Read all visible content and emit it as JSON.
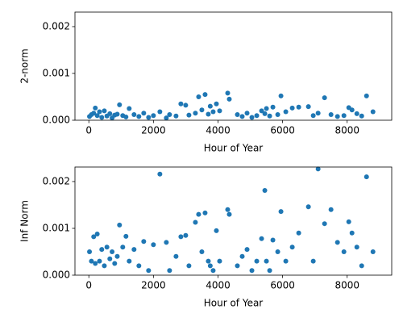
{
  "chart_data": [
    {
      "type": "scatter",
      "xlabel": "Hour of Year",
      "ylabel": "2-norm",
      "color": "#1f77b4",
      "x": [
        20,
        80,
        150,
        200,
        260,
        330,
        400,
        480,
        560,
        650,
        720,
        800,
        880,
        950,
        1050,
        1150,
        1250,
        1400,
        1550,
        1700,
        1850,
        2000,
        2200,
        2400,
        2500,
        2700,
        2850,
        3000,
        3100,
        3300,
        3400,
        3500,
        3600,
        3700,
        3760,
        3850,
        3950,
        4050,
        4300,
        4350,
        4600,
        4750,
        4900,
        5050,
        5200,
        5350,
        5450,
        5500,
        5600,
        5700,
        5850,
        5950,
        6100,
        6300,
        6500,
        6800,
        6950,
        7100,
        7300,
        7500,
        7700,
        7900,
        8050,
        8150,
        8300,
        8450,
        8600,
        8800
      ],
      "values": [
        8e-05,
        0.00012,
        0.00015,
        0.00026,
        0.0001,
        0.00018,
        6e-05,
        0.0002,
        9e-05,
        0.00014,
        5e-05,
        0.00011,
        0.00013,
        0.00033,
        0.0001,
        7e-05,
        0.00025,
        0.00012,
        8e-05,
        0.00015,
        6e-05,
        0.0001,
        0.00018,
        5e-05,
        0.00012,
        9e-05,
        0.00035,
        0.00032,
        0.00011,
        0.00015,
        0.0005,
        0.00022,
        0.00055,
        0.00013,
        0.0003,
        0.00018,
        0.00035,
        0.0002,
        0.00058,
        0.00045,
        0.00012,
        8e-05,
        0.00015,
        6e-05,
        0.0001,
        0.0002,
        0.00014,
        0.00025,
        9e-05,
        0.00028,
        0.00012,
        0.00052,
        0.00018,
        0.00026,
        0.00028,
        0.00029,
        0.0001,
        0.00015,
        0.00048,
        0.00012,
        8e-05,
        0.0001,
        0.00027,
        0.00022,
        0.00014,
        9e-05,
        0.00052,
        0.00018
      ],
      "xlim": [
        -430,
        9380
      ],
      "ylim": [
        0,
        0.00231
      ],
      "xticks": [
        0,
        2000,
        4000,
        6000,
        8000
      ],
      "yticks": [
        {
          "value": 0,
          "label": "0.000"
        },
        {
          "value": 0.001,
          "label": "0.001"
        },
        {
          "value": 0.002,
          "label": "0.002"
        }
      ]
    },
    {
      "type": "scatter",
      "xlabel": "Hour of Year",
      "ylabel": "Inf Norm",
      "color": "#1f77b4",
      "x": [
        20,
        80,
        150,
        200,
        260,
        330,
        400,
        480,
        560,
        650,
        720,
        800,
        880,
        950,
        1050,
        1150,
        1250,
        1400,
        1550,
        1700,
        1850,
        2000,
        2200,
        2400,
        2500,
        2700,
        2850,
        3000,
        3100,
        3300,
        3400,
        3500,
        3600,
        3700,
        3760,
        3850,
        3950,
        4050,
        4300,
        4350,
        4600,
        4750,
        4900,
        5050,
        5200,
        5350,
        5450,
        5500,
        5600,
        5700,
        5850,
        5950,
        6100,
        6300,
        6500,
        6800,
        6950,
        7100,
        7300,
        7500,
        7700,
        7900,
        8050,
        8150,
        8300,
        8450,
        8600,
        8800
      ],
      "values": [
        0.0005,
        0.0003,
        0.00082,
        0.00025,
        0.00088,
        0.0003,
        0.00055,
        0.0002,
        0.0006,
        0.00035,
        0.0005,
        0.00025,
        0.0004,
        0.00107,
        0.0006,
        0.00083,
        0.0003,
        0.00055,
        0.0002,
        0.00072,
        0.0001,
        0.00065,
        0.00216,
        0.0007,
        0.0001,
        0.0004,
        0.00082,
        0.00085,
        0.0002,
        0.00113,
        0.0013,
        0.0005,
        0.00133,
        0.0003,
        0.0002,
        0.0001,
        0.00095,
        0.0003,
        0.0014,
        0.0013,
        0.0002,
        0.0004,
        0.00055,
        0.0001,
        0.0003,
        0.00078,
        0.00181,
        0.0003,
        0.0001,
        0.00075,
        0.0005,
        0.00136,
        0.0003,
        0.0006,
        0.0009,
        0.00146,
        0.0003,
        0.00227,
        0.0011,
        0.0014,
        0.0007,
        0.0005,
        0.00114,
        0.0009,
        0.0006,
        0.0002,
        0.0021,
        0.0005
      ],
      "xlim": [
        -430,
        9380
      ],
      "ylim": [
        0,
        0.00231
      ],
      "xticks": [
        0,
        2000,
        4000,
        6000,
        8000
      ],
      "yticks": [
        {
          "value": 0,
          "label": "0.000"
        },
        {
          "value": 0.001,
          "label": "0.001"
        },
        {
          "value": 0.002,
          "label": "0.002"
        }
      ]
    }
  ]
}
